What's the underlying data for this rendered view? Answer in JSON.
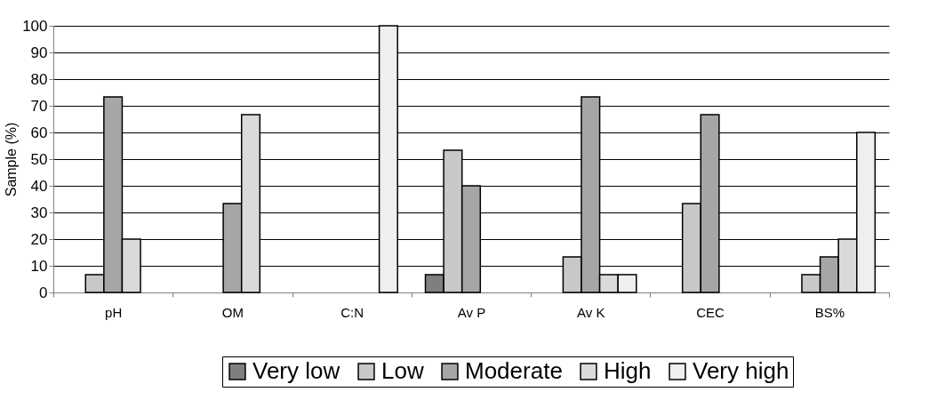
{
  "chart_data": {
    "type": "bar",
    "ylabel": "Sample (%)",
    "categories": [
      "pH",
      "OM",
      "C:N",
      "Av P",
      "Av K",
      "CEC",
      "BS%"
    ],
    "series": [
      {
        "name": "Very low",
        "color": "#7f7f7f",
        "values": [
          null,
          null,
          null,
          6.7,
          null,
          null,
          null
        ]
      },
      {
        "name": "Low",
        "color": "#c8c8c8",
        "values": [
          6.7,
          null,
          null,
          53.3,
          13.3,
          33.3,
          6.7
        ]
      },
      {
        "name": "Moderate",
        "color": "#a6a6a6",
        "values": [
          73.3,
          33.3,
          null,
          40,
          73.3,
          66.7,
          13.3
        ]
      },
      {
        "name": "High",
        "color": "#dadada",
        "values": [
          20,
          66.7,
          null,
          null,
          6.7,
          null,
          20
        ]
      },
      {
        "name": "Very high",
        "color": "#efefef",
        "values": [
          null,
          null,
          100,
          null,
          6.7,
          null,
          60
        ]
      }
    ],
    "ylim": [
      0,
      100
    ],
    "yticks": [
      0,
      10,
      20,
      30,
      40,
      50,
      60,
      70,
      80,
      90,
      100
    ],
    "grid": "y",
    "legend": "bottom"
  }
}
